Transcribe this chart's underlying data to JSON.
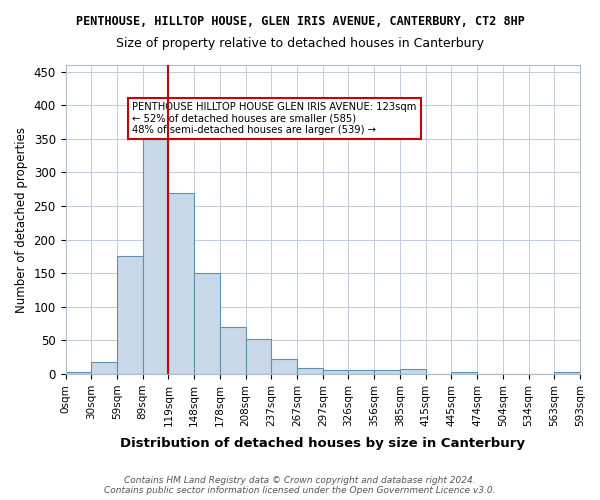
{
  "title": "PENTHOUSE, HILLTOP HOUSE, GLEN IRIS AVENUE, CANTERBURY, CT2 8HP",
  "subtitle": "Size of property relative to detached houses in Canterbury",
  "xlabel": "Distribution of detached houses by size in Canterbury",
  "ylabel": "Number of detached properties",
  "bins": [
    "0sqm",
    "30sqm",
    "59sqm",
    "89sqm",
    "119sqm",
    "148sqm",
    "178sqm",
    "208sqm",
    "237sqm",
    "267sqm",
    "297sqm",
    "326sqm",
    "356sqm",
    "385sqm",
    "415sqm",
    "445sqm",
    "474sqm",
    "504sqm",
    "534sqm",
    "563sqm",
    "593sqm"
  ],
  "values": [
    3,
    18,
    175,
    350,
    270,
    150,
    70,
    52,
    22,
    9,
    6,
    6,
    6,
    7,
    0,
    3,
    0,
    0,
    0,
    3
  ],
  "bar_color": "#c8d8e8",
  "bar_edge_color": "#6090b0",
  "vline_x": 4,
  "vline_color": "#cc0000",
  "annotation_text": "PENTHOUSE HILLTOP HOUSE GLEN IRIS AVENUE: 123sqm\n← 52% of detached houses are smaller (585)\n48% of semi-detached houses are larger (539) →",
  "annotation_box_color": "#ffffff",
  "annotation_box_edge": "#cc0000",
  "ylim": [
    0,
    460
  ],
  "footer": "Contains HM Land Registry data © Crown copyright and database right 2024.\nContains public sector information licensed under the Open Government Licence v3.0.",
  "bg_color": "#ffffff",
  "grid_color": "#c0cce0"
}
